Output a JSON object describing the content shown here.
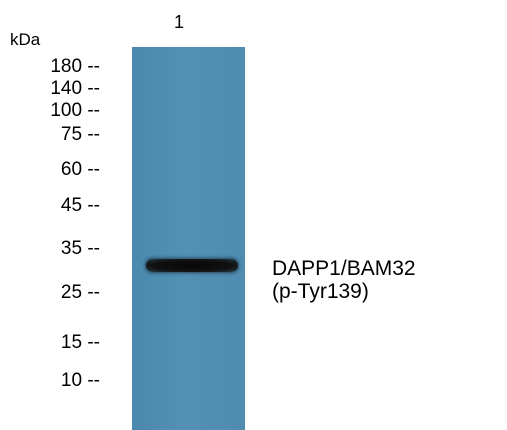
{
  "lane": {
    "number": "1"
  },
  "unit_label": "kDa",
  "markers": [
    "180 --",
    "140 --",
    "100 --",
    "75 --",
    "60 --",
    "45 --",
    "35 --",
    "25 --",
    "15 --",
    "10 --"
  ],
  "protein_label": {
    "line1": "DAPP1/BAM32",
    "line2": "(p-Tyr139)"
  },
  "colors": {
    "membrane": "#4f8cb0",
    "band": "#0a0a0a"
  }
}
